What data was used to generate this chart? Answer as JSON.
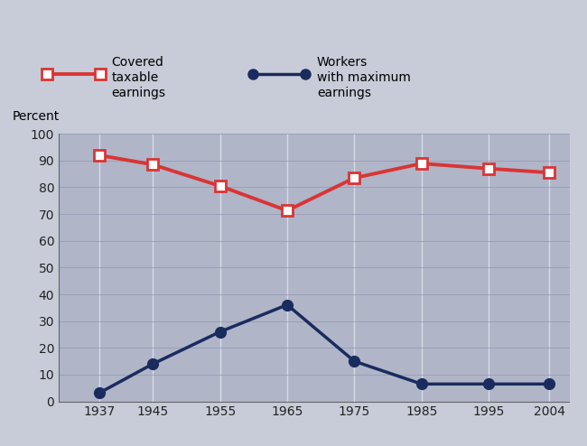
{
  "years": [
    1937,
    1945,
    1955,
    1965,
    1975,
    1985,
    1995,
    2004
  ],
  "covered_earnings": [
    92.0,
    88.5,
    80.5,
    71.3,
    83.5,
    88.9,
    87.0,
    85.5
  ],
  "max_earnings": [
    3.1,
    14.0,
    26.0,
    36.1,
    15.0,
    6.5,
    6.5,
    6.5
  ],
  "covered_color": "#d93535",
  "max_color": "#1a2b5e",
  "fig_bg_color": "#c8ccd8",
  "plot_bg_color": "#b0b5c8",
  "vgrid_color": "#d8dce8",
  "hgrid_color": "#9098b0",
  "ylim": [
    0,
    100
  ],
  "yticks": [
    0,
    10,
    20,
    30,
    40,
    50,
    60,
    70,
    80,
    90,
    100
  ],
  "ylabel": "Percent",
  "covered_marker": "s",
  "max_marker": "o",
  "covered_linewidth": 2.8,
  "max_linewidth": 2.5,
  "marker_size": 8
}
